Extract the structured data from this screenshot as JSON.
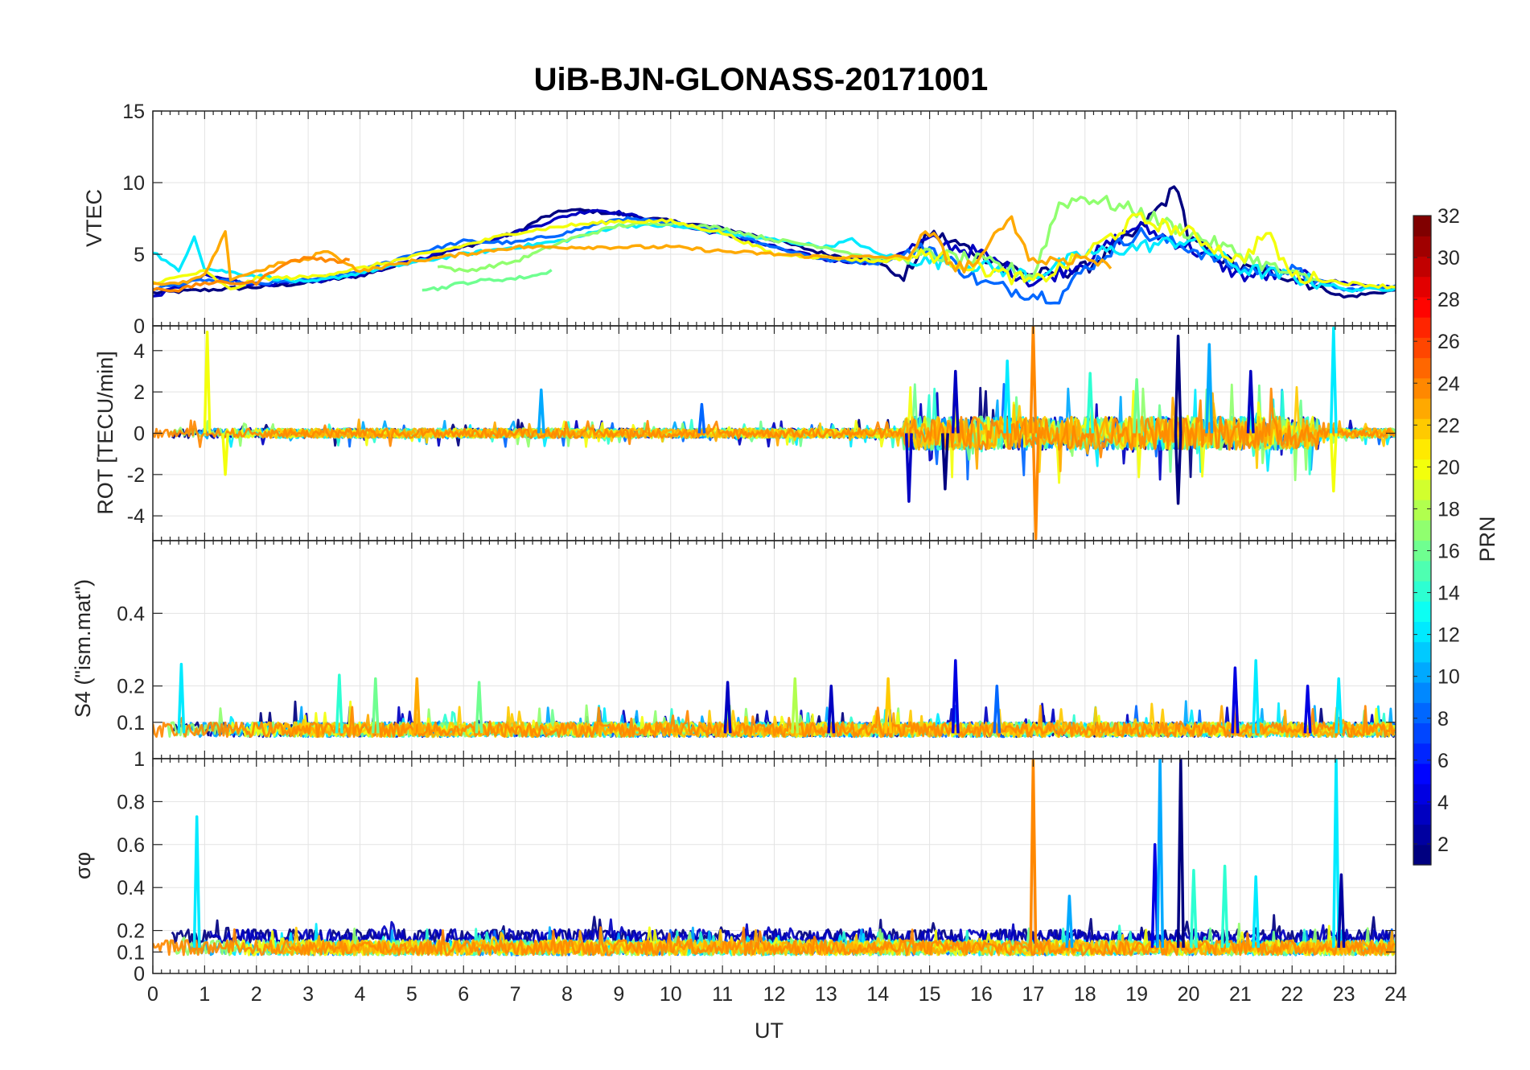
{
  "title": "UiB-BJN-GLONASS-20171001",
  "xlabel": "UT",
  "x_ticks": [
    "0",
    "1",
    "2",
    "3",
    "4",
    "5",
    "6",
    "7",
    "8",
    "9",
    "10",
    "11",
    "12",
    "13",
    "14",
    "15",
    "16",
    "17",
    "18",
    "19",
    "20",
    "21",
    "22",
    "23",
    "24"
  ],
  "colorbar": {
    "label": "PRN",
    "range": [
      1,
      32
    ],
    "ticks": [
      "2",
      "4",
      "6",
      "8",
      "10",
      "12",
      "14",
      "16",
      "18",
      "20",
      "22",
      "24",
      "26",
      "28",
      "30",
      "32"
    ],
    "colormap": "jet"
  },
  "chart_data": [
    {
      "type": "line",
      "panel": "vtec",
      "ylabel": "VTEC",
      "ylim": [
        0,
        15
      ],
      "xlim": [
        0,
        24
      ],
      "y_ticks": [
        "0",
        "5",
        "10",
        "15"
      ],
      "series": [
        {
          "name": "PRN 1",
          "prn": 1,
          "x": [
            0,
            1,
            2,
            3,
            4,
            5,
            6,
            7,
            7.5,
            8,
            8.5,
            9,
            10,
            11,
            12,
            13,
            14,
            14.5,
            15,
            16,
            17,
            18,
            19,
            19.8,
            20,
            21,
            22,
            23,
            24
          ],
          "values": [
            2.3,
            2.5,
            2.7,
            3,
            3.5,
            4.5,
            5.5,
            6.5,
            7.5,
            8.1,
            8,
            7.8,
            7.3,
            6.8,
            6,
            5,
            4.5,
            3.2,
            6.5,
            5,
            3.5,
            4,
            6.5,
            9.8,
            6,
            4,
            3.5,
            2,
            2.5
          ]
        },
        {
          "name": "PRN 3",
          "prn": 3,
          "x": [
            0,
            1,
            2,
            3,
            4,
            5,
            6,
            7,
            8,
            8.5,
            9,
            10,
            11,
            12,
            13,
            14,
            15,
            16,
            17,
            18,
            19,
            20,
            21,
            22,
            23,
            24
          ],
          "values": [
            2,
            3.5,
            2.9,
            3,
            3.6,
            4.5,
            5.6,
            6.5,
            7.7,
            8.1,
            7.9,
            7.1,
            6.4,
            5.5,
            4.6,
            4.4,
            6,
            5,
            3,
            4.5,
            7,
            5.5,
            3.5,
            3.5,
            3,
            2.6
          ]
        },
        {
          "name": "PRN 8",
          "prn": 8,
          "x": [
            0,
            1,
            2,
            3,
            4,
            5,
            6,
            7,
            8,
            9,
            10,
            11,
            12,
            13,
            14,
            15,
            16,
            17,
            17.5,
            18,
            19,
            20,
            21,
            22,
            23,
            24
          ],
          "values": [
            2.6,
            3.2,
            2.9,
            3.2,
            3.8,
            5,
            5.9,
            5.8,
            6.5,
            7.5,
            7.2,
            6.7,
            5.5,
            4.6,
            4.4,
            5.5,
            3,
            2.2,
            2,
            4,
            6.5,
            5.5,
            4,
            3.8,
            2.5,
            2.8
          ]
        },
        {
          "name": "PRN 12",
          "prn": 12,
          "x": [
            0,
            0.5,
            0.8,
            1,
            2,
            3,
            4,
            5,
            6,
            7,
            8,
            9,
            10,
            11,
            12,
            13,
            13.5,
            14,
            15,
            16,
            17,
            18,
            19,
            20,
            21,
            22,
            22.8,
            23,
            24
          ],
          "values": [
            5.2,
            3.8,
            6.3,
            4,
            3.5,
            3,
            3.7,
            4.4,
            5,
            5.5,
            6,
            7,
            7,
            6.5,
            6,
            5.5,
            6,
            5,
            4.5,
            4.2,
            3.5,
            5,
            5.5,
            6,
            4,
            3.4,
            2.8,
            2.5,
            2.6
          ]
        },
        {
          "name": "PRN 16",
          "prn": 16,
          "x": [
            5.2,
            5.5,
            6,
            6.5,
            7,
            7.5,
            7.7
          ],
          "values": [
            2.6,
            2.6,
            3,
            3.2,
            3.3,
            3.6,
            3.9
          ]
        },
        {
          "name": "PRN 17",
          "prn": 17,
          "x": [
            5.5,
            6,
            7,
            8,
            9,
            10,
            11,
            12,
            13,
            14,
            15,
            16,
            17,
            17.5,
            18,
            19,
            20,
            21,
            22,
            22.5
          ],
          "values": [
            4.2,
            3.8,
            4.5,
            6,
            7,
            7.2,
            6.8,
            6,
            5.5,
            4.6,
            5,
            4.5,
            3.5,
            8.5,
            9,
            8,
            6.5,
            5,
            3.5,
            3.2
          ]
        },
        {
          "name": "PRN 20",
          "prn": 20,
          "x": [
            0,
            1,
            1.5,
            2,
            3,
            4,
            5,
            6,
            7,
            8,
            9,
            10,
            11,
            12,
            13,
            14,
            15,
            16,
            17,
            18,
            19,
            20,
            21,
            21.5,
            22,
            23,
            24
          ],
          "values": [
            3,
            3.8,
            2.5,
            3.3,
            3.4,
            4,
            4.8,
            5.6,
            6.5,
            7,
            7.3,
            7.3,
            6.5,
            5,
            4.8,
            4.5,
            5,
            4,
            3,
            5,
            7.5,
            6.5,
            4.5,
            6.5,
            3.5,
            3,
            2.7
          ]
        },
        {
          "name": "PRN 23",
          "prn": 23,
          "x": [
            0,
            0.5,
            1,
            1.4,
            1.5,
            2,
            2.5,
            3,
            3.3,
            3.7,
            4,
            5,
            6,
            7,
            8,
            9,
            10,
            11,
            12,
            13,
            14,
            14.5,
            15,
            15.5,
            16,
            16.5,
            17,
            18,
            18.5
          ],
          "values": [
            3,
            2.9,
            3.5,
            6.5,
            3.3,
            3.8,
            4.4,
            4.6,
            5.3,
            4.5,
            3.8,
            4.5,
            5,
            5.5,
            5.5,
            5.5,
            5.5,
            5.2,
            5,
            4.8,
            4.8,
            4.8,
            6.5,
            4,
            4.5,
            7.8,
            4.5,
            4.8,
            4
          ]
        },
        {
          "name": "PRN 24",
          "prn": 24,
          "x": [
            0,
            0.5,
            1,
            2,
            2.5,
            3,
            3.5,
            3.8
          ],
          "values": [
            2.6,
            2.5,
            3,
            3,
            4.3,
            4.8,
            4.5,
            4.6
          ]
        }
      ]
    },
    {
      "type": "line",
      "panel": "rot",
      "ylabel": "ROT [TECU/min]",
      "ylim": [
        -5.2,
        5.2
      ],
      "xlim": [
        0,
        24
      ],
      "y_ticks": [
        "-4",
        "-2",
        "0",
        "2",
        "4"
      ],
      "spikes": [
        {
          "prn": 20,
          "x": 1.05,
          "y": 4.9
        },
        {
          "prn": 20,
          "x": 1.4,
          "y": -2
        },
        {
          "prn": 10,
          "x": 7.5,
          "y": 2.1
        },
        {
          "prn": 8,
          "x": 10.6,
          "y": 1.4
        },
        {
          "prn": 3,
          "x": 14.6,
          "y": -3.3
        },
        {
          "prn": 3,
          "x": 15.5,
          "y": 3
        },
        {
          "prn": 24,
          "x": 17,
          "y": 5.2
        },
        {
          "prn": 24,
          "x": 17.05,
          "y": -5.1
        },
        {
          "prn": 14,
          "x": 18.1,
          "y": 2.9
        },
        {
          "prn": 16,
          "x": 19,
          "y": 2.6
        },
        {
          "prn": 1,
          "x": 19.8,
          "y": 4.7
        },
        {
          "prn": 1,
          "x": 19.8,
          "y": -3.4
        },
        {
          "prn": 10,
          "x": 20.4,
          "y": 4.3
        },
        {
          "prn": 12,
          "x": 22.8,
          "y": 5.1
        },
        {
          "prn": 20,
          "x": 22.8,
          "y": -2.8
        },
        {
          "prn": 1,
          "x": 15.3,
          "y": -2.7
        },
        {
          "prn": 12,
          "x": 16.5,
          "y": 3.5
        },
        {
          "prn": 3,
          "x": 21.2,
          "y": 3
        }
      ]
    },
    {
      "type": "line",
      "panel": "s4",
      "ylabel": "S4 (\"ism.mat\")",
      "ylim": [
        0,
        0.6
      ],
      "xlim": [
        0,
        24
      ],
      "y_ticks": [
        "0.1",
        "0.2",
        "0.4"
      ],
      "spikes": [
        {
          "prn": 12,
          "x": 0.55,
          "y": 0.26
        },
        {
          "prn": 14,
          "x": 3.6,
          "y": 0.23
        },
        {
          "prn": 16,
          "x": 4.3,
          "y": 0.22
        },
        {
          "prn": 23,
          "x": 5.1,
          "y": 0.22
        },
        {
          "prn": 16,
          "x": 6.3,
          "y": 0.21
        },
        {
          "prn": 3,
          "x": 11.1,
          "y": 0.21
        },
        {
          "prn": 18,
          "x": 12.4,
          "y": 0.22
        },
        {
          "prn": 3,
          "x": 13.1,
          "y": 0.2
        },
        {
          "prn": 22,
          "x": 14.2,
          "y": 0.22
        },
        {
          "prn": 4,
          "x": 15.5,
          "y": 0.27
        },
        {
          "prn": 8,
          "x": 16.3,
          "y": 0.2
        },
        {
          "prn": 4,
          "x": 20.9,
          "y": 0.25
        },
        {
          "prn": 4,
          "x": 22.3,
          "y": 0.2
        },
        {
          "prn": 12,
          "x": 22.9,
          "y": 0.22
        },
        {
          "prn": 12,
          "x": 21.3,
          "y": 0.27
        }
      ]
    },
    {
      "type": "line",
      "panel": "sigma_phi",
      "ylabel": "σφ",
      "ylim": [
        0,
        1
      ],
      "xlim": [
        0,
        24
      ],
      "y_ticks": [
        "0",
        "0.1",
        "0.2",
        "0.4",
        "0.6",
        "0.8",
        "1"
      ],
      "spikes": [
        {
          "prn": 12,
          "x": 0.85,
          "y": 0.73
        },
        {
          "prn": 24,
          "x": 17,
          "y": 1.0
        },
        {
          "prn": 10,
          "x": 17.7,
          "y": 0.36
        },
        {
          "prn": 4,
          "x": 19.35,
          "y": 0.6
        },
        {
          "prn": 10,
          "x": 19.45,
          "y": 1.0
        },
        {
          "prn": 1,
          "x": 19.85,
          "y": 1.0
        },
        {
          "prn": 14,
          "x": 20.1,
          "y": 0.48
        },
        {
          "prn": 14,
          "x": 20.7,
          "y": 0.5
        },
        {
          "prn": 12,
          "x": 22.85,
          "y": 1.0
        },
        {
          "prn": 2,
          "x": 22.95,
          "y": 0.46
        },
        {
          "prn": 12,
          "x": 21.3,
          "y": 0.45
        }
      ]
    }
  ]
}
